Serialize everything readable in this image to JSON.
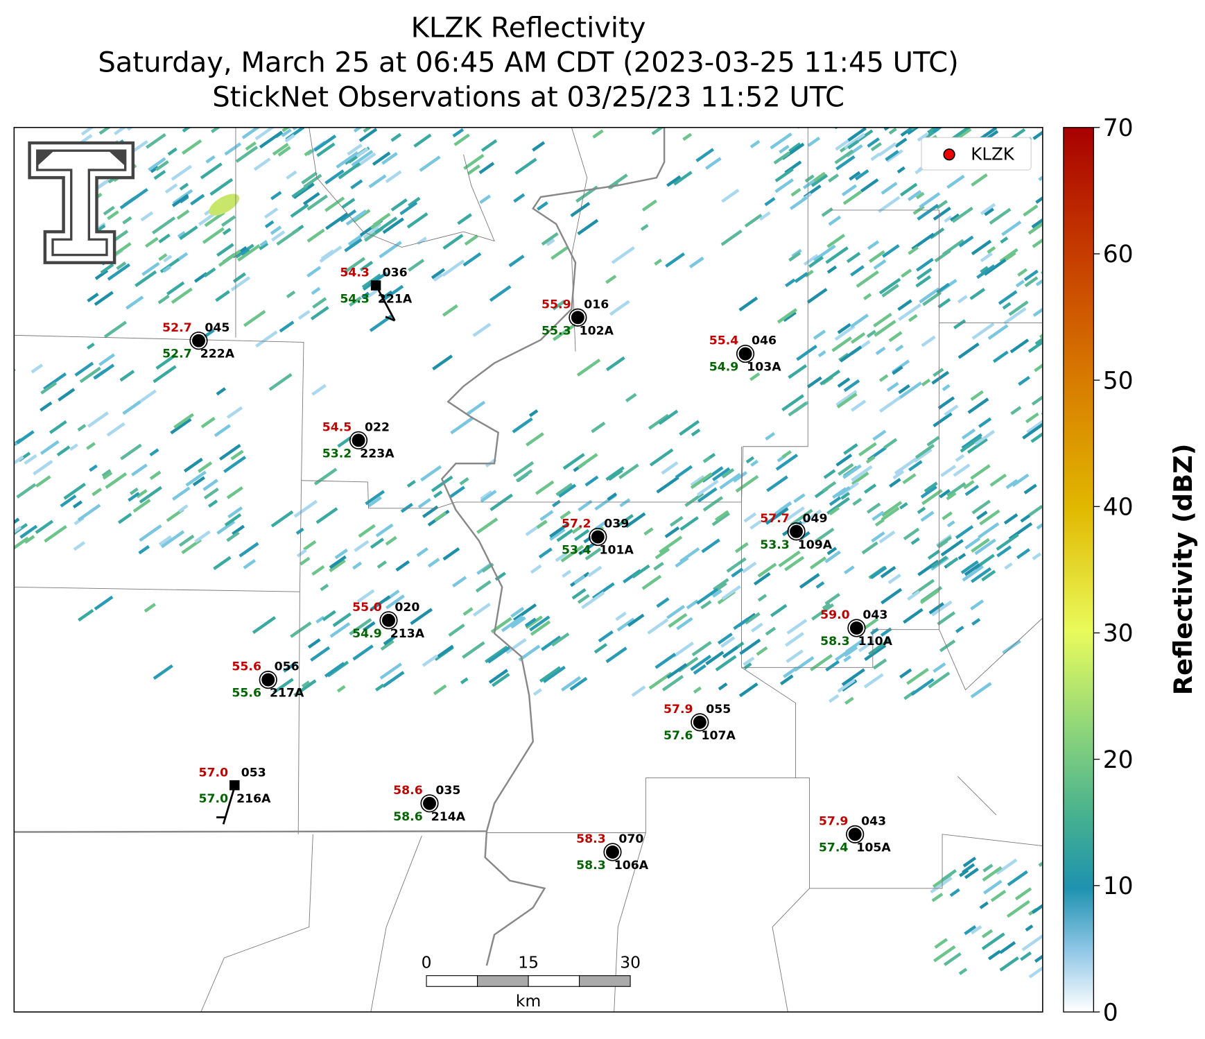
{
  "title": [
    "KLZK Reflectivity",
    "Saturday, March 25 at 06:45 AM CDT (2023-03-25 11:45 UTC)",
    "StickNet Observations at 03/25/23 11:52 UTC"
  ],
  "legend": "KLZK",
  "colorbar": {
    "label": "Reflectivity (dBZ)",
    "ticks": [
      0,
      10,
      20,
      30,
      40,
      50,
      60,
      70
    ]
  },
  "scale_bar": {
    "ticks": [
      0,
      15,
      30
    ],
    "unit": "km"
  },
  "stations": [
    {
      "id": "036",
      "name": "221A",
      "temperature": "54.3",
      "dewpoint": "54.3"
    },
    {
      "id": "045",
      "name": "222A",
      "temperature": "52.7",
      "dewpoint": "52.7"
    },
    {
      "id": "016",
      "name": "102A",
      "temperature": "55.9",
      "dewpoint": "55.3"
    },
    {
      "id": "046",
      "name": "103A",
      "temperature": "55.4",
      "dewpoint": "54.9"
    },
    {
      "id": "022",
      "name": "223A",
      "temperature": "54.5",
      "dewpoint": "53.2"
    },
    {
      "id": "039",
      "name": "101A",
      "temperature": "57.2",
      "dewpoint": "53.4"
    },
    {
      "id": "049",
      "name": "109A",
      "temperature": "57.7",
      "dewpoint": "53.3"
    },
    {
      "id": "020",
      "name": "213A",
      "temperature": "55.0",
      "dewpoint": "54.9"
    },
    {
      "id": "043",
      "name": "110A",
      "temperature": "59.0",
      "dewpoint": "58.3"
    },
    {
      "id": "056",
      "name": "217A",
      "temperature": "55.6",
      "dewpoint": "55.6"
    },
    {
      "id": "055",
      "name": "107A",
      "temperature": "57.9",
      "dewpoint": "57.6"
    },
    {
      "id": "053",
      "name": "216A",
      "temperature": "57.0",
      "dewpoint": "57.0"
    },
    {
      "id": "035",
      "name": "214A",
      "temperature": "58.6",
      "dewpoint": "58.6"
    },
    {
      "id": "070",
      "name": "106A",
      "temperature": "58.3",
      "dewpoint": "58.3"
    },
    {
      "id": "043",
      "name": "105A",
      "temperature": "57.9",
      "dewpoint": "57.4"
    }
  ]
}
